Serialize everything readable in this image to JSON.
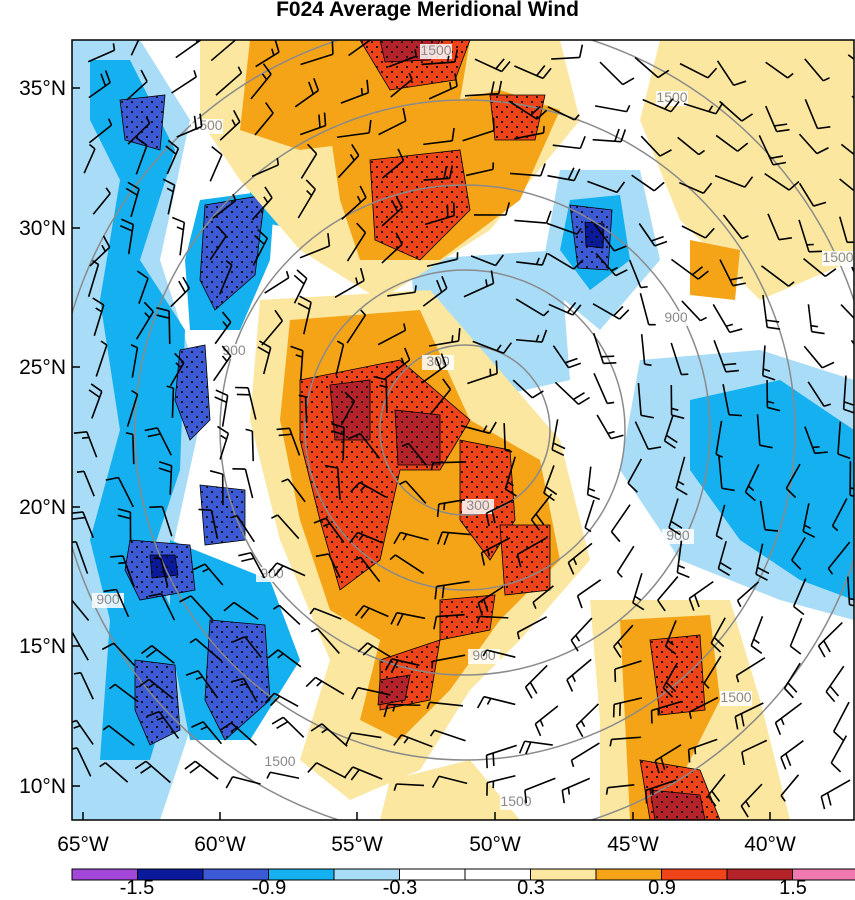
{
  "title": "F024 Average Meridional Wind",
  "lat_labels": [
    "35°N",
    "30°N",
    "25°N",
    "20°N",
    "15°N",
    "10°N"
  ],
  "lon_labels": [
    "65°W",
    "60°W",
    "55°W",
    "50°W",
    "45°W",
    "40°W"
  ],
  "range_ring_labels": [
    "300",
    "900",
    "1500"
  ],
  "colorbar": {
    "labels": [
      "-1.5",
      "-0.9",
      "-0.3",
      "0.3",
      "0.9",
      "1.5"
    ],
    "colors": [
      "#a347d8",
      "#0a1a9a",
      "#3d5ad6",
      "#15b0ef",
      "#a8dcf7",
      "#ffffff",
      "#ffffff",
      "#fbe7a0",
      "#f5a418",
      "#ef4419",
      "#b5232a",
      "#f07ab0"
    ]
  },
  "fill_colors": {
    "strong_negative": "#0a1a9a",
    "negative": "#3d5ad6",
    "moderate_negative": "#15b0ef",
    "weak_negative": "#a8dcf7",
    "weak_positive": "#fbe7a0",
    "moderate_positive": "#f5a418",
    "positive": "#ef4419",
    "strong_positive": "#b5232a"
  },
  "ring_color": "#8a8a8a",
  "barb_color": "#000000"
}
